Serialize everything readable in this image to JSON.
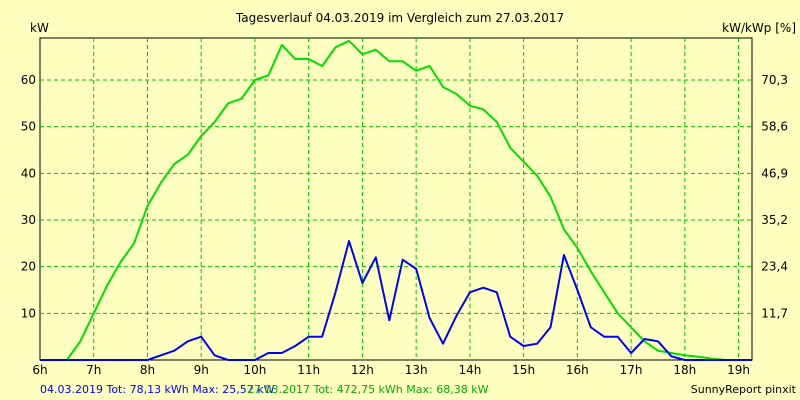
{
  "chart_data": {
    "type": "line",
    "title": "Tagesverlauf 04.03.2019 im Vergleich zum 27.03.2017",
    "ylabel_left": "kW",
    "ylabel_right": "kW/kWp [%]",
    "x_tick_labels": [
      "6h",
      "7h",
      "8h",
      "9h",
      "10h",
      "11h",
      "12h",
      "13h",
      "14h",
      "15h",
      "16h",
      "17h",
      "18h",
      "19h"
    ],
    "xlim": [
      6,
      19.25
    ],
    "ylim": [
      0,
      69
    ],
    "y_ticks_left": [
      10,
      20,
      30,
      40,
      50,
      60
    ],
    "y_ticks_right_labels": [
      "11,7",
      "23,4",
      "35,2",
      "46,9",
      "58,6",
      "70,3"
    ],
    "grid": true,
    "series": [
      {
        "name": "27.03.2017",
        "color": "#00e000",
        "x": [
          6.0,
          6.5,
          6.75,
          7.0,
          7.25,
          7.5,
          7.75,
          8.0,
          8.25,
          8.5,
          8.75,
          9.0,
          9.25,
          9.5,
          9.75,
          10.0,
          10.25,
          10.5,
          10.75,
          11.0,
          11.25,
          11.5,
          11.75,
          12.0,
          12.25,
          12.5,
          12.75,
          13.0,
          13.25,
          13.5,
          13.75,
          14.0,
          14.25,
          14.5,
          14.75,
          15.0,
          15.25,
          15.5,
          15.75,
          16.0,
          16.25,
          16.5,
          16.75,
          17.0,
          17.25,
          17.5,
          17.75,
          18.0,
          18.25,
          18.5,
          18.75,
          19.0,
          19.25
        ],
        "values": [
          0,
          0,
          4,
          10,
          16,
          21,
          25,
          33,
          38,
          42,
          44,
          48,
          51,
          55,
          56,
          60,
          61,
          67.5,
          64.5,
          64.5,
          63,
          67,
          68.4,
          65.5,
          66.5,
          64,
          64,
          62,
          63,
          58.5,
          57,
          54.5,
          53.7,
          51,
          45.5,
          42.5,
          39.5,
          35,
          28,
          24,
          19,
          14.5,
          10,
          7,
          4,
          2,
          1.5,
          1,
          0.7,
          0.3,
          0,
          0,
          0
        ]
      },
      {
        "name": "04.03.2019",
        "color": "#0000ff",
        "x": [
          6.0,
          7.5,
          8.0,
          8.25,
          8.5,
          8.75,
          9.0,
          9.25,
          9.5,
          9.75,
          10.0,
          10.25,
          10.5,
          10.75,
          11.0,
          11.25,
          11.5,
          11.75,
          12.0,
          12.25,
          12.5,
          12.75,
          13.0,
          13.25,
          13.5,
          13.75,
          14.0,
          14.25,
          14.5,
          14.75,
          15.0,
          15.25,
          15.5,
          15.75,
          16.0,
          16.25,
          16.5,
          16.75,
          17.0,
          17.25,
          17.5,
          17.75,
          18.0,
          18.5,
          19.0,
          19.25
        ],
        "values": [
          0,
          0,
          0,
          1,
          2,
          4,
          5,
          1,
          0,
          0,
          0,
          1.5,
          1.5,
          3,
          5,
          5,
          14.5,
          25.5,
          16.5,
          22,
          8.5,
          21.5,
          19.5,
          9,
          3.5,
          9.5,
          14.5,
          15.5,
          14.5,
          5,
          3,
          3.5,
          7,
          22.5,
          15,
          7,
          5,
          5,
          1.5,
          4.5,
          4,
          0.8,
          0,
          0,
          0,
          0
        ]
      }
    ],
    "footer": {
      "series_2019": "04.03.2019 Tot: 78,13 kWh Max: 25,57 kW",
      "series_2017": "27.03.2017 Tot: 472,75 kWh Max: 68,38 kW",
      "credit": "SunnyReport pinxit"
    }
  }
}
